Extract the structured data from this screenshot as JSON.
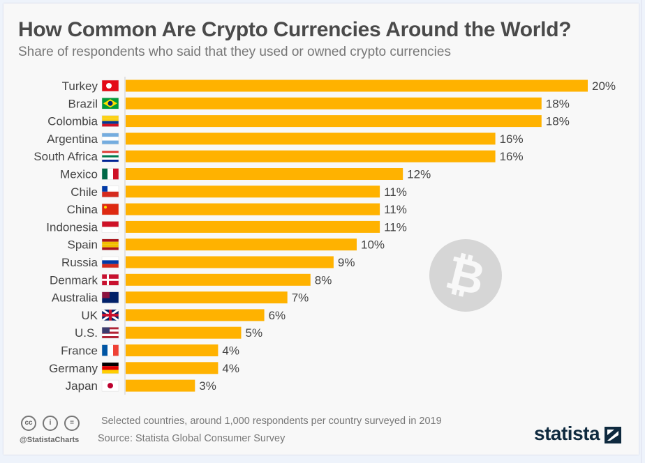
{
  "chart_data": {
    "type": "bar",
    "orientation": "horizontal",
    "title": "How Common Are Crypto Currencies Around the World?",
    "subtitle": "Share of respondents who said that they used or owned crypto currencies",
    "categories": [
      "Turkey",
      "Brazil",
      "Colombia",
      "Argentina",
      "South Africa",
      "Mexico",
      "Chile",
      "China",
      "Indonesia",
      "Spain",
      "Russia",
      "Denmark",
      "Australia",
      "UK",
      "U.S.",
      "France",
      "Germany",
      "Japan"
    ],
    "values": [
      20,
      18,
      18,
      16,
      16,
      12,
      11,
      11,
      11,
      10,
      9,
      8,
      7,
      6,
      5,
      4,
      4,
      3
    ],
    "value_suffix": "%",
    "xlim": [
      0,
      20
    ],
    "grid": false,
    "bar_color": "#ffb200",
    "xlabel": "",
    "ylabel": ""
  },
  "footer": {
    "note": "Selected countries, around 1,000 respondents per country surveyed in 2019",
    "source": "Source: Statista Global Consumer Survey",
    "handle": "@StatistaCharts",
    "cc_label": "cc",
    "eq_label": "=",
    "logo": "statista"
  }
}
